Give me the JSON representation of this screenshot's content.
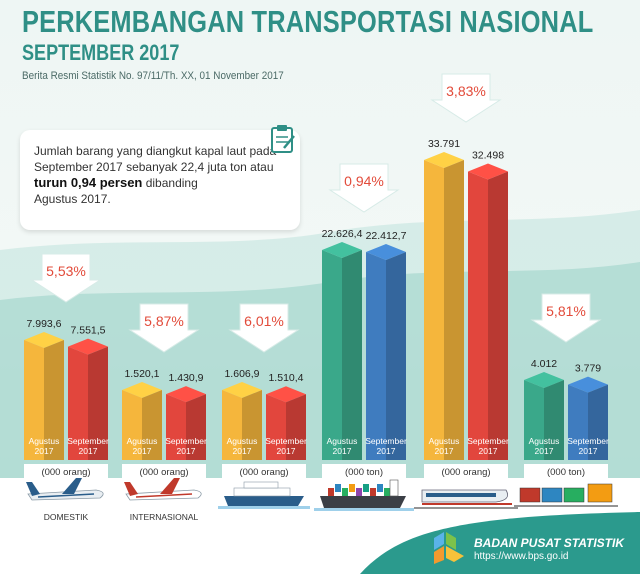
{
  "header": {
    "title": "PERKEMBANGAN TRANSPORTASI NASIONAL",
    "subtitle": "SEPTEMBER 2017",
    "publication": "Berita Resmi Statistik No. 97/11/Th. XX, 01 November 2017"
  },
  "callout": {
    "line1": "Jumlah barang yang diangkut kapal laut pada",
    "line2_prefix": "September 2017 sebanyak ",
    "line2_value": "22,4 juta ton atau",
    "line3_bold": "turun 0,94 persen",
    "line3_rest": " dibanding",
    "line4": "Agustus 2017."
  },
  "footer": {
    "org": "BADAN PUSAT STATISTIK",
    "url": "https://www.bps.go.id"
  },
  "colors": {
    "orange": "#f5b63c",
    "red": "#e2463d",
    "green": "#3aa88a",
    "blue": "#3f7cbf",
    "teal_bg": "#2b9a8d",
    "arrow": "#ffffff",
    "pct_text": "#e24b3a"
  },
  "chart_data": [
    {
      "type": "bar",
      "group": "DOMESTIK",
      "icon": "domestic-plane-icon",
      "unit": "(000 orang)",
      "change": "5,53%",
      "direction": "down",
      "categories": [
        "Agustus 2017",
        "September 2017"
      ],
      "values": [
        7993.6,
        7551.5
      ],
      "labels": [
        "7.993,6",
        "7.551,5"
      ],
      "colors": [
        "orange",
        "red"
      ]
    },
    {
      "type": "bar",
      "group": "INTERNASIONAL",
      "icon": "international-plane-icon",
      "unit": "(000 orang)",
      "change": "5,87%",
      "direction": "down",
      "categories": [
        "Agustus 2017",
        "September 2017"
      ],
      "values": [
        1520.1,
        1430.9
      ],
      "labels": [
        "1.520,1",
        "1.430,9"
      ],
      "colors": [
        "orange",
        "red"
      ]
    },
    {
      "type": "bar",
      "group": "",
      "icon": "passenger-ship-icon",
      "unit": "(000 orang)",
      "change": "6,01%",
      "direction": "down",
      "categories": [
        "Agustus 2017",
        "September 2017"
      ],
      "values": [
        1606.9,
        1510.4
      ],
      "labels": [
        "1.606,9",
        "1.510,4"
      ],
      "colors": [
        "orange",
        "red"
      ]
    },
    {
      "type": "bar",
      "group": "",
      "icon": "cargo-ship-icon",
      "unit": "(000 ton)",
      "change": "0,94%",
      "direction": "down",
      "categories": [
        "Agustus 2017",
        "September 2017"
      ],
      "values": [
        22626.4,
        22412.7
      ],
      "labels": [
        "22.626,4",
        "22.412,7"
      ],
      "colors": [
        "green",
        "blue"
      ]
    },
    {
      "type": "bar",
      "group": "",
      "icon": "passenger-train-icon",
      "unit": "(000 orang)",
      "change": "3,83%",
      "direction": "down",
      "categories": [
        "Agustus 2017",
        "September 2017"
      ],
      "values": [
        33791,
        32498
      ],
      "labels": [
        "33.791",
        "32.498"
      ],
      "colors": [
        "orange",
        "red"
      ]
    },
    {
      "type": "bar",
      "group": "",
      "icon": "freight-train-icon",
      "unit": "(000 ton)",
      "change": "5,81%",
      "direction": "down",
      "categories": [
        "Agustus 2017",
        "September 2017"
      ],
      "values": [
        4012,
        3779
      ],
      "labels": [
        "4.012",
        "3.779"
      ],
      "colors": [
        "green",
        "blue"
      ]
    }
  ]
}
